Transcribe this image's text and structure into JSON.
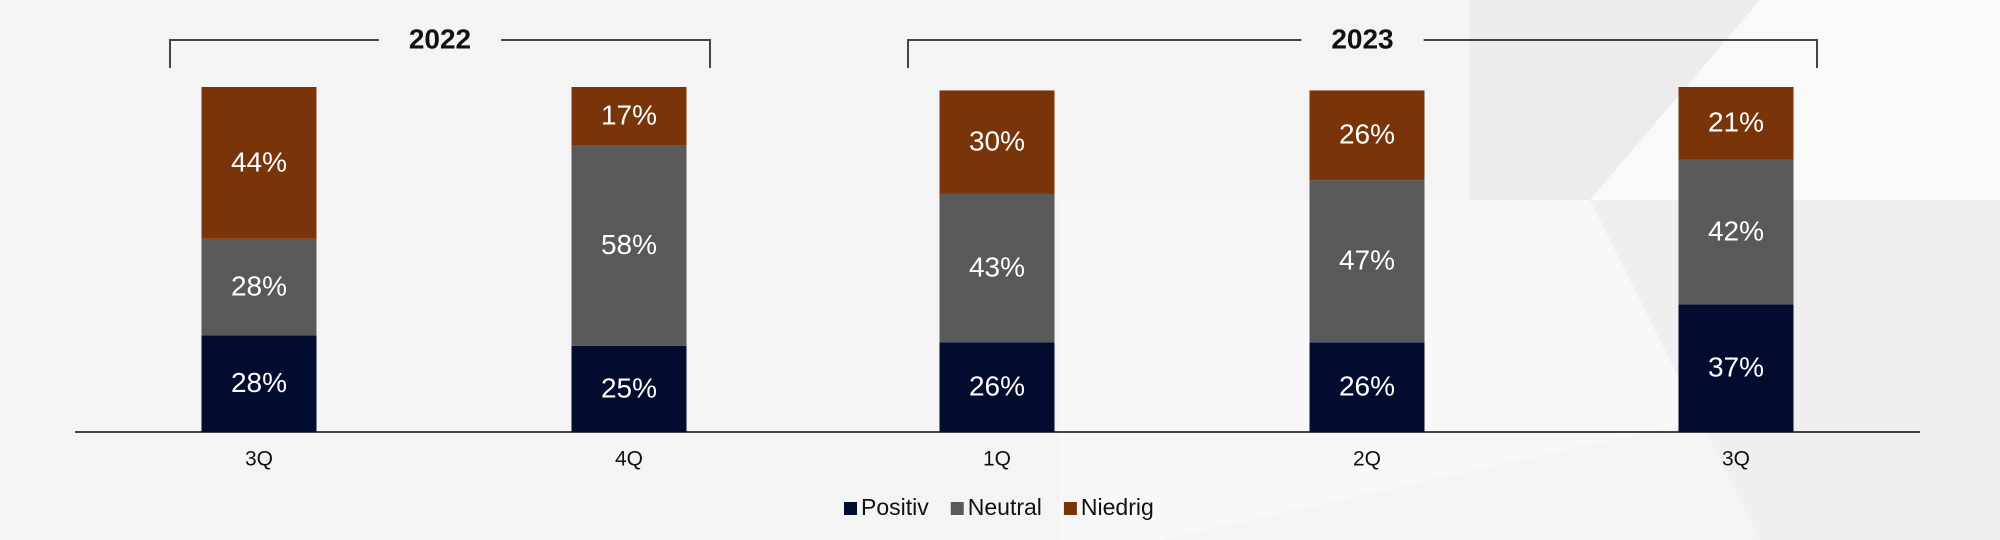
{
  "chart_data": {
    "type": "stacked-bar",
    "groups": [
      {
        "label": "2022",
        "categories": [
          "3Q",
          "4Q"
        ]
      },
      {
        "label": "2023",
        "categories": [
          "1Q",
          "2Q",
          "3Q"
        ]
      }
    ],
    "ylim": [
      0,
      100
    ],
    "series": [
      {
        "name": "Positiv",
        "color": "#020c2f",
        "values": [
          28,
          25,
          26,
          26,
          37
        ],
        "value_labels": [
          "28%",
          "25%",
          "26%",
          "26%",
          "37%"
        ]
      },
      {
        "name": "Neutral",
        "color": "#595959",
        "values": [
          28,
          58,
          43,
          47,
          42
        ],
        "value_labels": [
          "28%",
          "58%",
          "43%",
          "47%",
          "42%"
        ]
      },
      {
        "name": "Niedrig",
        "color": "#7a3409",
        "values": [
          44,
          17,
          30,
          26,
          21
        ],
        "value_labels": [
          "44%",
          "17%",
          "30%",
          "26%",
          "21%"
        ]
      }
    ]
  }
}
